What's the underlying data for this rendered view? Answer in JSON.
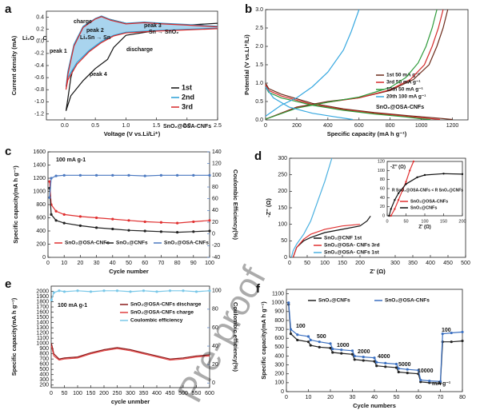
{
  "watermark": "Pre-proof",
  "chart_data": [
    {
      "label": "a",
      "type": "line",
      "x_label": "Voltage (V vs.Li/Li⁺)",
      "y_label": "Current density (mA)",
      "xlim": [
        -0.3,
        2.5
      ],
      "ylim": [
        -1.3,
        0.5
      ],
      "xticks": [
        {
          "value": 0,
          "label": "0.0"
        },
        0.5,
        {
          "value": 1,
          "label": "1.0"
        },
        1.5,
        {
          "value": 2,
          "label": "2.0"
        },
        2.5
      ],
      "yticks": [
        -1.2,
        {
          "value": -1,
          "label": "-1.0"
        },
        -0.8,
        -0.6,
        -0.4,
        -0.2,
        {
          "value": 0,
          "label": "0.0"
        },
        0.2,
        0.4
      ],
      "series": [
        {
          "name": "1st",
          "color": "#111111",
          "x": [
            2.5,
            2.0,
            1.5,
            1.0,
            0.8,
            0.7,
            0.5,
            0.3,
            0.1,
            0.02,
            0.05,
            0.1,
            0.2,
            0.35,
            0.5,
            0.6,
            0.8,
            1.0,
            1.3,
            1.6,
            2.0,
            2.5
          ],
          "values": [
            0.22,
            0.2,
            0.18,
            0.1,
            -0.1,
            -0.3,
            -0.45,
            -0.65,
            -0.9,
            -1.15,
            -0.95,
            -0.6,
            -0.2,
            0.15,
            0.33,
            0.4,
            0.35,
            0.3,
            0.3,
            0.28,
            0.27,
            0.3
          ]
        },
        {
          "name": "2nd",
          "color": "#2a9fd6",
          "fill_color": "#a9d4ee",
          "x": [
            2.5,
            2.0,
            1.5,
            1.0,
            0.8,
            0.6,
            0.4,
            0.2,
            0.05,
            0.02,
            0.05,
            0.15,
            0.3,
            0.5,
            0.6,
            0.75,
            1.0,
            1.3,
            1.6,
            2.0,
            2.5
          ],
          "values": [
            0.22,
            0.2,
            0.18,
            0.15,
            0.1,
            0.0,
            -0.15,
            -0.35,
            -0.6,
            -0.75,
            -0.5,
            -0.05,
            0.25,
            0.38,
            0.42,
            0.36,
            0.3,
            0.32,
            0.3,
            0.28,
            0.25
          ]
        },
        {
          "name": "3rd",
          "color": "#d62728",
          "x": [
            2.5,
            2.0,
            1.5,
            1.0,
            0.8,
            0.6,
            0.4,
            0.2,
            0.05,
            0.02,
            0.05,
            0.15,
            0.3,
            0.5,
            0.6,
            0.75,
            1.0,
            1.3,
            1.6,
            2.0,
            2.5
          ],
          "values": [
            0.21,
            0.19,
            0.17,
            0.14,
            0.09,
            -0.02,
            -0.17,
            -0.38,
            -0.64,
            -0.8,
            -0.55,
            -0.08,
            0.23,
            0.37,
            0.41,
            0.35,
            0.29,
            0.31,
            0.29,
            0.27,
            0.24
          ]
        }
      ],
      "annotations": [
        "charge",
        "discharge",
        "peak 1",
        "peak 2",
        "peak 3",
        "peak 4",
        "Li₂O → C",
        "Li₂Sn → Sn",
        "Sn → SnO₂",
        "SnO₂@OSA-CNFs"
      ]
    },
    {
      "label": "b",
      "type": "line",
      "x_label": "Specific capacity (mA h g⁻¹)",
      "y_label": "Potential (V vs.Li⁺/Li)",
      "xlim": [
        0,
        1300
      ],
      "ylim": [
        0,
        3
      ],
      "xticks": [
        0,
        200,
        400,
        600,
        800,
        1000,
        1200
      ],
      "yticks": [
        {
          "value": 0,
          "label": "0.0"
        },
        0.5,
        {
          "value": 1,
          "label": "1.0"
        },
        1.5,
        {
          "value": 2,
          "label": "2.0"
        },
        2.5,
        {
          "value": 3,
          "label": "3.0"
        }
      ],
      "series": [
        {
          "name": "1st  50 mA g⁻¹",
          "color": "#6b2a1a",
          "x": [
            0,
            20,
            100,
            300,
            500,
            700,
            900,
            1100,
            1200,
            null,
            0,
            200,
            400,
            600,
            800,
            950,
            1050,
            1100,
            1140,
            1170
          ],
          "values": [
            1.0,
            0.85,
            0.7,
            0.45,
            0.3,
            0.2,
            0.12,
            0.05,
            0.01,
            null,
            0.02,
            0.35,
            0.5,
            0.6,
            0.8,
            1.1,
            1.5,
            2.0,
            2.5,
            3.0
          ]
        },
        {
          "name": "3rd  50 mA g⁻¹",
          "color": "#d42a2a",
          "x": [
            0,
            20,
            100,
            300,
            500,
            700,
            900,
            1050,
            1120,
            null,
            0,
            200,
            400,
            600,
            800,
            930,
            1020,
            1070,
            1110,
            1140
          ],
          "values": [
            0.95,
            0.8,
            0.65,
            0.42,
            0.28,
            0.18,
            0.1,
            0.04,
            0.01,
            null,
            0.02,
            0.33,
            0.48,
            0.6,
            0.82,
            1.1,
            1.5,
            2.0,
            2.5,
            3.0
          ]
        },
        {
          "name": "10th  50 mA g⁻¹",
          "color": "#2e9a3a",
          "x": [
            0,
            20,
            100,
            300,
            500,
            700,
            900,
            1000,
            1060,
            null,
            0,
            200,
            400,
            600,
            800,
            900,
            980,
            1030,
            1070,
            1100
          ],
          "values": [
            0.9,
            0.75,
            0.6,
            0.4,
            0.26,
            0.16,
            0.08,
            0.03,
            0.01,
            null,
            0.02,
            0.32,
            0.48,
            0.62,
            0.88,
            1.15,
            1.55,
            2.0,
            2.5,
            3.0
          ]
        },
        {
          "name": "20th  100 mA g⁻¹",
          "color": "#37a8e0",
          "x": [
            0,
            50,
            150,
            300,
            450,
            560,
            null,
            0,
            100,
            200,
            300,
            400,
            500,
            550,
            600
          ],
          "values": [
            0.9,
            0.6,
            0.35,
            0.18,
            0.08,
            0.01,
            null,
            0.1,
            0.4,
            0.6,
            0.9,
            1.3,
            1.9,
            2.4,
            3.0
          ]
        }
      ],
      "annotations": [
        "SnO₂@OSA-CNFs"
      ]
    },
    {
      "label": "c",
      "type": "line",
      "x_label": "Cycle number",
      "y_label": "Specific capacity(mA h g⁻¹)",
      "y2_label": "Coulombic Efficiency(%)",
      "xlim": [
        0,
        100
      ],
      "ylim": [
        0,
        1600
      ],
      "y2lim": [
        -40,
        140
      ],
      "xticks": [
        0,
        10,
        20,
        30,
        40,
        50,
        60,
        70,
        80,
        90,
        100
      ],
      "yticks": [
        0,
        200,
        400,
        600,
        800,
        1000,
        1200,
        1400,
        1600
      ],
      "y2ticks": [
        -40,
        -20,
        0,
        20,
        40,
        60,
        80,
        100,
        120,
        140
      ],
      "series": [
        {
          "name": "SnO₂@OSA-CNFs",
          "color": "#e03030",
          "marker": true,
          "x": [
            1,
            2,
            5,
            10,
            20,
            30,
            40,
            50,
            60,
            70,
            80,
            90,
            100
          ],
          "values": [
            1150,
            800,
            700,
            650,
            620,
            600,
            580,
            560,
            540,
            530,
            520,
            540,
            560
          ]
        },
        {
          "name": "SnO₂@CNFs",
          "color": "#222222",
          "marker": true,
          "x": [
            1,
            2,
            5,
            10,
            20,
            30,
            40,
            50,
            60,
            70,
            80,
            90,
            100
          ],
          "values": [
            1050,
            650,
            560,
            520,
            480,
            450,
            430,
            410,
            400,
            390,
            380,
            390,
            400
          ]
        },
        {
          "name": "SnO₂@OSA-CNFs",
          "color": "#4a78c0",
          "marker": true,
          "axis": "y2",
          "x": [
            1,
            2,
            5,
            10,
            20,
            30,
            40,
            50,
            60,
            70,
            80,
            90,
            100
          ],
          "values": [
            62,
            95,
            99,
            100,
            100,
            100,
            100,
            100,
            99,
            100,
            100,
            100,
            100
          ]
        }
      ],
      "annotations": [
        "100 mA g-1"
      ]
    },
    {
      "label": "d",
      "type": "line",
      "x_label": "Z' (Ω)",
      "y_label": "-Z'' (Ω)",
      "xlim": [
        0,
        500
      ],
      "ylim": [
        0,
        300
      ],
      "xticks": [
        0,
        50,
        100,
        150,
        200,
        300,
        350,
        400,
        450,
        500
      ],
      "yticks": [
        0,
        50,
        100,
        150,
        200,
        250,
        300
      ],
      "series": [
        {
          "name": "SnO₂@CNF   1st",
          "color": "#111111",
          "x": [
            10,
            20,
            40,
            60,
            100,
            150,
            200,
            220,
            230
          ],
          "values": [
            0,
            30,
            50,
            60,
            75,
            85,
            95,
            110,
            125
          ]
        },
        {
          "name": "SnO₂@OSA- CNFs 3rd",
          "color": "#e03030",
          "x": [
            10,
            20,
            40,
            60,
            100,
            150,
            200
          ],
          "values": [
            0,
            30,
            55,
            70,
            85,
            95,
            100
          ]
        },
        {
          "name": "SnO₂@OSA- CNFs 1st",
          "color": "#4ab0e0",
          "x": [
            5,
            10,
            20,
            40,
            60,
            80,
            100,
            120
          ],
          "values": [
            0,
            20,
            40,
            70,
            110,
            170,
            230,
            300
          ]
        }
      ]
    },
    {
      "type": "line",
      "x_label": "Z' (Ω)",
      "y_label": "-Z'' (Ω)",
      "xlim": [
        0,
        200
      ],
      "ylim": [
        0,
        120
      ],
      "xticks": [
        0,
        50,
        100,
        150,
        200
      ],
      "yticks": [
        0,
        20,
        40,
        60,
        80,
        100,
        120
      ],
      "series": [
        {
          "name": "SnO₂@OSA-CNFs",
          "color": "#e03030",
          "marker": true,
          "x": [
            10,
            20,
            30,
            40,
            50,
            60,
            70
          ],
          "values": [
            0,
            15,
            35,
            55,
            75,
            100,
            120
          ]
        },
        {
          "name": "SnO₂@CNFs",
          "color": "#111111",
          "marker": true,
          "x": [
            5,
            10,
            20,
            30,
            50,
            80,
            100,
            150,
            200
          ],
          "values": [
            0,
            15,
            35,
            50,
            70,
            85,
            90,
            93,
            92
          ]
        }
      ],
      "annotations": [
        "R SnO₂@OSA-CNFs < R SnO₂@CNFs"
      ]
    },
    {
      "label": "e",
      "type": "line",
      "x_label": "cycle unmber",
      "y_label": "Specific capacity(mA h g⁻¹)",
      "y2_label": "Coulombic efficiency(%)",
      "xlim": [
        0,
        600
      ],
      "ylim": [
        150,
        2100
      ],
      "y2lim": [
        -5,
        105
      ],
      "xticks": [
        0,
        50,
        100,
        150,
        200,
        250,
        300,
        350,
        400,
        450,
        500,
        550,
        600
      ],
      "yticks": [
        200,
        300,
        400,
        500,
        600,
        700,
        800,
        900,
        1000,
        1100,
        1200,
        1300,
        1400,
        1500,
        1600,
        1700,
        1800,
        1900,
        2000
      ],
      "y2ticks": [
        0,
        20,
        40,
        60,
        80,
        100
      ],
      "series": [
        {
          "name": "SnO₂@OSA-CNFs discharge",
          "color": "#8b1a1a",
          "x": [
            1,
            10,
            30,
            50,
            100,
            150,
            200,
            250,
            300,
            350,
            400,
            450,
            500,
            550,
            600
          ],
          "values": [
            1000,
            800,
            700,
            720,
            740,
            820,
            880,
            920,
            880,
            820,
            760,
            700,
            720,
            760,
            780
          ]
        },
        {
          "name": "SnO₂@OSA-CNFs charge",
          "color": "#e04040",
          "x": [
            1,
            10,
            30,
            50,
            100,
            150,
            200,
            250,
            300,
            350,
            400,
            450,
            500,
            550,
            600
          ],
          "values": [
            950,
            760,
            680,
            700,
            720,
            800,
            860,
            900,
            860,
            800,
            740,
            680,
            700,
            740,
            760
          ]
        },
        {
          "name": "Coulombic efficiency",
          "color": "#7ac8e8",
          "marker": true,
          "axis": "y2",
          "x": [
            1,
            10,
            30,
            50,
            100,
            150,
            200,
            250,
            300,
            350,
            400,
            450,
            500,
            550,
            600
          ],
          "values": [
            90,
            98,
            100,
            99,
            100,
            99,
            100,
            100,
            99,
            100,
            99,
            100,
            100,
            99,
            100
          ]
        }
      ],
      "annotations": [
        "100 mA g-1"
      ]
    },
    {
      "label": "f",
      "type": "line",
      "x_label": "Cycle numbers",
      "y_label": "Specific capacity(mA h g⁻¹)",
      "xlim": [
        0,
        80
      ],
      "ylim": [
        0,
        1150
      ],
      "xticks": [
        0,
        10,
        20,
        30,
        40,
        50,
        60,
        70,
        80
      ],
      "yticks": [
        0,
        100,
        200,
        300,
        400,
        500,
        600,
        700,
        800,
        900,
        1000,
        1100
      ],
      "series": [
        {
          "name": "SnO₂@CNFs",
          "color": "#222222",
          "marker": true,
          "x": [
            1,
            2,
            5,
            10,
            11,
            15,
            20,
            21,
            25,
            30,
            31,
            35,
            40,
            41,
            45,
            50,
            51,
            55,
            60,
            61,
            65,
            70,
            71,
            75,
            80
          ],
          "values": [
            980,
            650,
            580,
            560,
            520,
            500,
            490,
            440,
            430,
            420,
            360,
            350,
            340,
            290,
            280,
            270,
            220,
            210,
            200,
            110,
            100,
            95,
            560,
            560,
            570
          ]
        },
        {
          "name": "SnO₂@OSA-CNFs",
          "color": "#3a6fc0",
          "marker": true,
          "x": [
            1,
            2,
            5,
            10,
            11,
            15,
            20,
            21,
            25,
            30,
            31,
            35,
            40,
            41,
            45,
            50,
            51,
            55,
            60,
            61,
            65,
            70,
            71,
            75,
            80
          ],
          "values": [
            1000,
            700,
            640,
            620,
            580,
            560,
            540,
            480,
            470,
            460,
            400,
            390,
            380,
            330,
            320,
            310,
            260,
            250,
            240,
            130,
            120,
            115,
            650,
            660,
            670
          ]
        }
      ],
      "annotations": [
        "100",
        "500",
        "1000",
        "2000",
        "4000",
        "5000",
        "10000",
        "100",
        "mA g⁻¹"
      ]
    }
  ]
}
